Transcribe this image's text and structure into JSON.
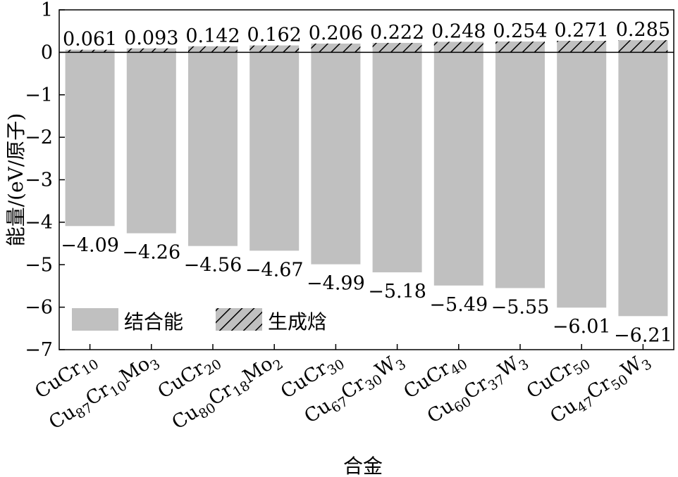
{
  "chart_data": {
    "type": "bar",
    "xlabel": "合金",
    "ylabel": "能量/(eV/原子)",
    "ylim": [
      -7,
      1
    ],
    "yticks": [
      "−7",
      "−6",
      "−5",
      "−4",
      "−3",
      "−2",
      "−1",
      "0",
      "1"
    ],
    "ytick_values": [
      -7,
      -6,
      -5,
      -4,
      -3,
      -2,
      -1,
      0,
      1
    ],
    "grid": false,
    "legend_position": "bottom-left",
    "categories": [
      {
        "parts": [
          [
            "CuCr",
            ""
          ],
          [
            "10",
            "sub"
          ]
        ]
      },
      {
        "parts": [
          [
            "Cu",
            ""
          ],
          [
            "87",
            "sub"
          ],
          [
            "Cr",
            ""
          ],
          [
            "10",
            "sub"
          ],
          [
            "Mo",
            ""
          ],
          [
            "3",
            "sub"
          ]
        ]
      },
      {
        "parts": [
          [
            "CuCr",
            ""
          ],
          [
            "20",
            "sub"
          ]
        ]
      },
      {
        "parts": [
          [
            "Cu",
            ""
          ],
          [
            "80",
            "sub"
          ],
          [
            "Cr",
            ""
          ],
          [
            "18",
            "sub"
          ],
          [
            "Mo",
            ""
          ],
          [
            "2",
            "sub"
          ]
        ]
      },
      {
        "parts": [
          [
            "CuCr",
            ""
          ],
          [
            "30",
            "sub"
          ]
        ]
      },
      {
        "parts": [
          [
            "Cu",
            ""
          ],
          [
            "67",
            "sub"
          ],
          [
            "Cr",
            ""
          ],
          [
            "30",
            "sub"
          ],
          [
            "W",
            ""
          ],
          [
            "3",
            "sub"
          ]
        ]
      },
      {
        "parts": [
          [
            "CuCr",
            ""
          ],
          [
            "40",
            "sub"
          ]
        ]
      },
      {
        "parts": [
          [
            "Cu",
            ""
          ],
          [
            "60",
            "sub"
          ],
          [
            "Cr",
            ""
          ],
          [
            "37",
            "sub"
          ],
          [
            "W",
            ""
          ],
          [
            "3",
            "sub"
          ]
        ]
      },
      {
        "parts": [
          [
            "CuCr",
            ""
          ],
          [
            "50",
            "sub"
          ]
        ]
      },
      {
        "parts": [
          [
            "Cu",
            ""
          ],
          [
            "47",
            "sub"
          ],
          [
            "Cr",
            ""
          ],
          [
            "50",
            "sub"
          ],
          [
            "W",
            ""
          ],
          [
            "3",
            "sub"
          ]
        ]
      }
    ],
    "series": [
      {
        "name": "结合能",
        "style": "solid",
        "color": "#c0c0c0",
        "values": [
          -4.09,
          -4.26,
          -4.56,
          -4.67,
          -4.99,
          -5.18,
          -5.49,
          -5.55,
          -6.01,
          -6.21
        ],
        "labels": [
          "−4.09",
          "−4.26",
          "−4.56",
          "−4.67",
          "−4.99",
          "−5.18",
          "−5.49",
          "−5.55",
          "−6.01",
          "−6.21"
        ]
      },
      {
        "name": "生成焓",
        "style": "hatched",
        "color": "#c0c0c0",
        "values": [
          0.061,
          0.093,
          0.142,
          0.162,
          0.206,
          0.222,
          0.248,
          0.254,
          0.271,
          0.285
        ],
        "labels": [
          "0.061",
          "0.093",
          "0.142",
          "0.162",
          "0.206",
          "0.222",
          "0.248",
          "0.254",
          "0.271",
          "0.285"
        ]
      }
    ]
  }
}
